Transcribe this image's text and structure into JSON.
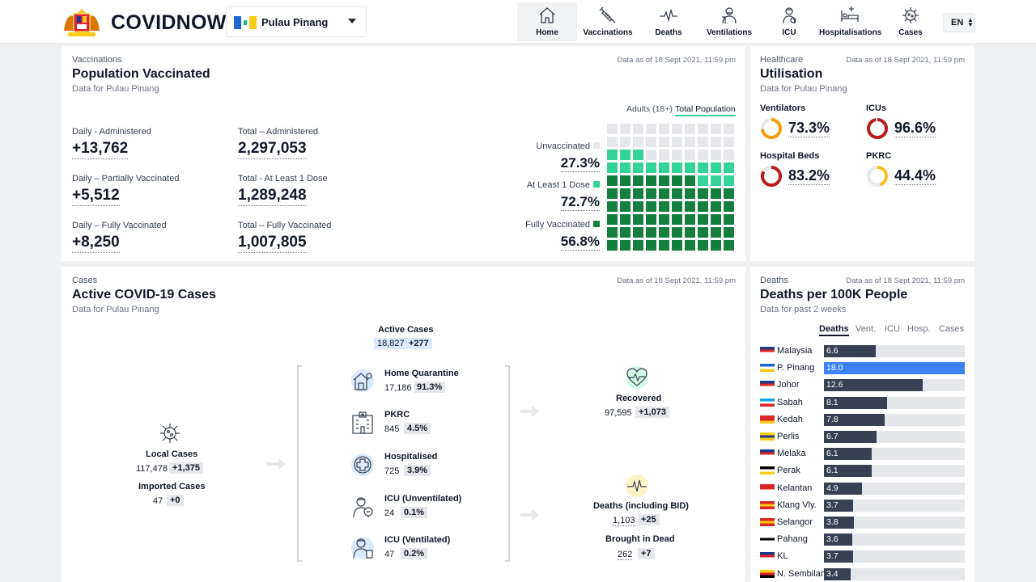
{
  "header": {
    "brand": "COVIDNOW",
    "state_selected": "Pulau Pinang",
    "nav": [
      {
        "label": "Home",
        "icon": "home-icon",
        "active": true
      },
      {
        "label": "Vaccinations",
        "icon": "syringe-icon"
      },
      {
        "label": "Deaths",
        "icon": "heartbeat-icon"
      },
      {
        "label": "Ventilations",
        "icon": "ventilator-icon"
      },
      {
        "label": "ICU",
        "icon": "icu-doctor-icon"
      },
      {
        "label": "Hospitalisations",
        "icon": "hospital-bed-icon"
      },
      {
        "label": "Cases",
        "icon": "virus-icon"
      }
    ],
    "language": "EN"
  },
  "vaccinations": {
    "eyebrow": "Vaccinations",
    "title": "Population Vaccinated",
    "subtitle": "Data for Pulau Pinang",
    "asof": "Data as of 18 Sept 2021, 11:59 pm",
    "stats": [
      {
        "label": "Daily - Administered",
        "value": "+13,762"
      },
      {
        "label": "Total – Administered",
        "value": "2,297,053"
      },
      {
        "label": "Daily – Partially Vaccinated",
        "value": "+5,512"
      },
      {
        "label": "Total - At Least 1 Dose",
        "value": "1,289,248"
      },
      {
        "label": "Daily – Fully Vaccinated",
        "value": "+8,250"
      },
      {
        "label": "Total – Fully Vaccinated",
        "value": "1,007,805"
      }
    ],
    "toggle": [
      "Adults (18+)",
      "Total Population"
    ],
    "toggle_selected": "Total Population",
    "waffle": [
      {
        "label": "Unvaccinated",
        "pct": "27.3%",
        "value": 27.3,
        "color": "#e5e7eb"
      },
      {
        "label": "At Least 1 Dose",
        "pct": "72.7%",
        "value": 72.7,
        "color": "#34d399"
      },
      {
        "label": "Fully Vaccinated",
        "pct": "56.8%",
        "value": 56.8,
        "color": "#15803d"
      }
    ]
  },
  "healthcare": {
    "eyebrow": "Healthcare",
    "title": "Utilisation",
    "subtitle": "Data for Pulau Pinang",
    "asof": "Data as of 18 Sept 2021, 11:59 pm",
    "items": [
      {
        "label": "Ventilators",
        "value": "73.3%",
        "fraction": 0.733,
        "color": "#f59e0b"
      },
      {
        "label": "ICUs",
        "value": "96.6%",
        "fraction": 0.966,
        "color": "#b91c1c"
      },
      {
        "label": "Hospital Beds",
        "value": "83.2%",
        "fraction": 0.832,
        "color": "#b91c1c"
      },
      {
        "label": "PKRC",
        "value": "44.4%",
        "fraction": 0.444,
        "color": "#fbbf24"
      }
    ]
  },
  "cases": {
    "eyebrow": "Cases",
    "title": "Active COVID-19 Cases",
    "subtitle": "Data for Pulau Pinang",
    "asof": "Data as of 18 Sept 2021, 11:59 pm",
    "active": {
      "label": "Active Cases",
      "value": "18,827",
      "delta": "+277"
    },
    "local": {
      "label": "Local Cases",
      "value": "117,478",
      "delta": "+1,375"
    },
    "imported": {
      "label": "Imported Cases",
      "value": "47",
      "delta": "+0"
    },
    "buckets": [
      {
        "label": "Home Quarantine",
        "value": "17,186",
        "pct": "91.3%",
        "icon": "home-quarantine-icon"
      },
      {
        "label": "PKRC",
        "value": "845",
        "pct": "4.5%",
        "icon": "pkrc-building-icon"
      },
      {
        "label": "Hospitalised",
        "value": "725",
        "pct": "3.9%",
        "icon": "hospital-cross-icon"
      },
      {
        "label": "ICU (Unventilated)",
        "value": "24",
        "pct": "0.1%",
        "icon": "icu-unventilated-icon"
      },
      {
        "label": "ICU (Ventilated)",
        "value": "47",
        "pct": "0.2%",
        "icon": "icu-ventilated-icon"
      }
    ],
    "recovered": {
      "label": "Recovered",
      "value": "97,595",
      "delta": "+1,073"
    },
    "deaths": {
      "label": "Deaths (including BID)",
      "value": "1,103",
      "delta": "+25"
    },
    "bid": {
      "label": "Brought in Dead",
      "value": "262",
      "delta": "+7"
    }
  },
  "deaths_per_100k": {
    "eyebrow": "Deaths",
    "title": "Deaths per 100K People",
    "subtitle": "Data for past 2 weeks",
    "asof": "Data as of 18 Sept 2021, 11:59 pm",
    "tabs": [
      "Deaths",
      "Vent.",
      "ICU",
      "Hosp.",
      "Cases"
    ],
    "tab_selected": "Deaths",
    "highlight_color": "#3b82f6",
    "rows": [
      {
        "name": "Malaysia",
        "value": "6.6",
        "num": 6.6
      },
      {
        "name": "P. Pinang",
        "value": "18.0",
        "num": 18.0,
        "highlight": true
      },
      {
        "name": "Johor",
        "value": "12.6",
        "num": 12.6
      },
      {
        "name": "Sabah",
        "value": "8.1",
        "num": 8.1
      },
      {
        "name": "Kedah",
        "value": "7.8",
        "num": 7.8
      },
      {
        "name": "Perlis",
        "value": "6.7",
        "num": 6.7
      },
      {
        "name": "Melaka",
        "value": "6.1",
        "num": 6.1
      },
      {
        "name": "Perak",
        "value": "6.1",
        "num": 6.1
      },
      {
        "name": "Kelantan",
        "value": "4.9",
        "num": 4.9
      },
      {
        "name": "Klang Vly.",
        "value": "3.7",
        "num": 3.7
      },
      {
        "name": "Selangor",
        "value": "3.8",
        "num": 3.8
      },
      {
        "name": "Pahang",
        "value": "3.6",
        "num": 3.6
      },
      {
        "name": "KL",
        "value": "3.7",
        "num": 3.7
      },
      {
        "name": "N. Sembilan",
        "value": "3.4",
        "num": 3.4
      }
    ]
  }
}
